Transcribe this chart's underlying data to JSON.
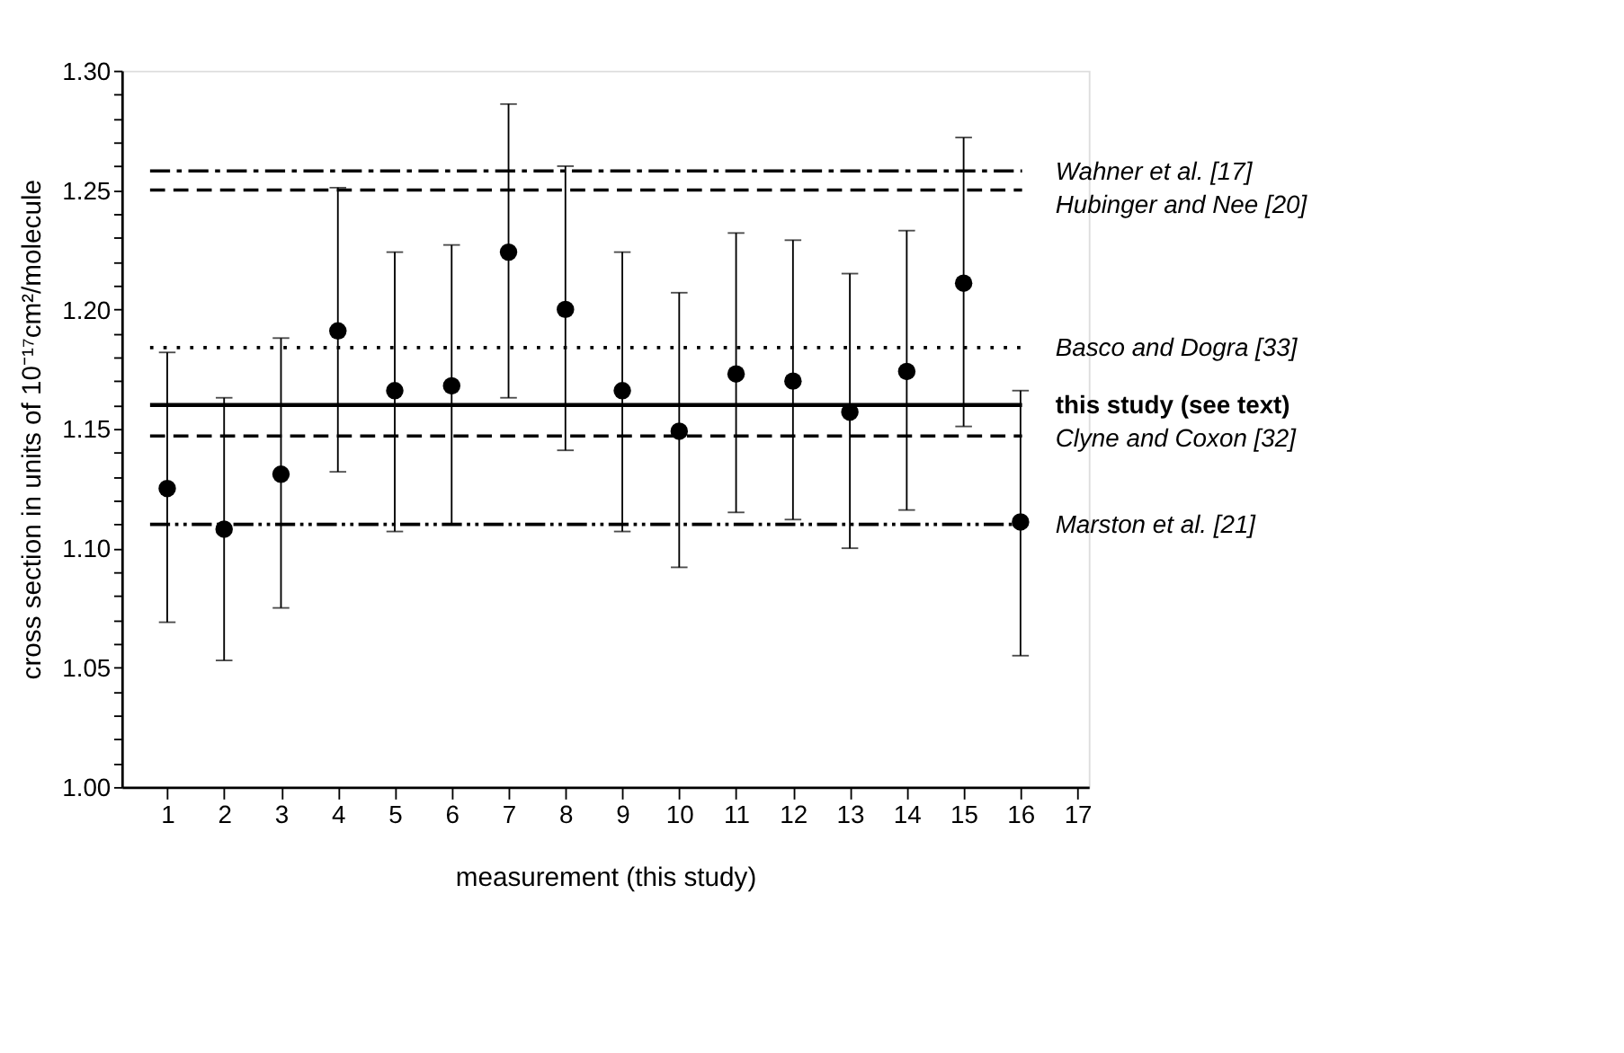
{
  "chart_data": {
    "type": "scatter",
    "xlabel": "measurement (this study)",
    "ylabel": "cross section in units of 10⁻¹⁷cm²/molecule",
    "x": [
      1,
      2,
      3,
      4,
      5,
      6,
      7,
      8,
      9,
      10,
      11,
      12,
      13,
      14,
      15,
      16
    ],
    "values": [
      1.125,
      1.108,
      1.131,
      1.191,
      1.166,
      1.168,
      1.224,
      1.2,
      1.166,
      1.149,
      1.173,
      1.17,
      1.157,
      1.174,
      1.211,
      1.111
    ],
    "errors": [
      [
        1.069,
        1.182
      ],
      [
        1.053,
        1.163
      ],
      [
        1.075,
        1.188
      ],
      [
        1.132,
        1.251
      ],
      [
        1.107,
        1.224
      ],
      [
        1.11,
        1.227
      ],
      [
        1.163,
        1.286
      ],
      [
        1.141,
        1.26
      ],
      [
        1.107,
        1.224
      ],
      [
        1.092,
        1.207
      ],
      [
        1.115,
        1.232
      ],
      [
        1.112,
        1.229
      ],
      [
        1.1,
        1.215
      ],
      [
        1.116,
        1.233
      ],
      [
        1.151,
        1.272
      ],
      [
        1.055,
        1.166
      ]
    ],
    "color": "#000000",
    "marker": "circle",
    "xlim": [
      0.2,
      17.2
    ],
    "xticks": [
      1,
      2,
      3,
      4,
      5,
      6,
      7,
      8,
      9,
      10,
      11,
      12,
      13,
      14,
      15,
      16,
      17
    ],
    "ylim": [
      1.0,
      1.3
    ],
    "yticks": [
      {
        "value": 1.0,
        "label": "1.00"
      },
      {
        "value": 1.01,
        "label": null
      },
      {
        "value": 1.02,
        "label": null
      },
      {
        "value": 1.03,
        "label": null
      },
      {
        "value": 1.04,
        "label": null
      },
      {
        "value": 1.05,
        "label": "1.05"
      },
      {
        "value": 1.06,
        "label": null
      },
      {
        "value": 1.07,
        "label": null
      },
      {
        "value": 1.08,
        "label": null
      },
      {
        "value": 1.09,
        "label": null
      },
      {
        "value": 1.1,
        "label": "1.10"
      },
      {
        "value": 1.11,
        "label": null
      },
      {
        "value": 1.12,
        "label": null
      },
      {
        "value": 1.13,
        "label": null
      },
      {
        "value": 1.14,
        "label": null
      },
      {
        "value": 1.15,
        "label": "1.15"
      },
      {
        "value": 1.16,
        "label": null
      },
      {
        "value": 1.17,
        "label": null
      },
      {
        "value": 1.18,
        "label": null
      },
      {
        "value": 1.19,
        "label": null
      },
      {
        "value": 1.2,
        "label": "1.20"
      },
      {
        "value": 1.21,
        "label": null
      },
      {
        "value": 1.22,
        "label": null
      },
      {
        "value": 1.23,
        "label": null
      },
      {
        "value": 1.24,
        "label": null
      },
      {
        "value": 1.25,
        "label": "1.25"
      },
      {
        "value": 1.26,
        "label": null
      },
      {
        "value": 1.27,
        "label": null
      },
      {
        "value": 1.28,
        "label": null
      },
      {
        "value": 1.29,
        "label": null
      },
      {
        "value": 1.3,
        "label": "1.30"
      }
    ],
    "grid": false,
    "ref_lines": [
      {
        "axis": "y",
        "value": 1.258,
        "label": "Wahner et al. [17]",
        "line_style": "dashdot"
      },
      {
        "axis": "y",
        "value": 1.25,
        "label": "Hubinger and Nee [20]",
        "line_style": "dashed"
      },
      {
        "axis": "y",
        "value": 1.184,
        "label": "Basco and Dogra [33]",
        "line_style": "dotted"
      },
      {
        "axis": "y",
        "value": 1.16,
        "label": "this study (see text)",
        "line_style": "solid"
      },
      {
        "axis": "y",
        "value": 1.147,
        "label": "Clyne and Coxon [32]",
        "line_style": "dashed"
      },
      {
        "axis": "y",
        "value": 1.11,
        "label": "Marston et al. [21]",
        "line_style": "dashdotdot"
      }
    ]
  }
}
